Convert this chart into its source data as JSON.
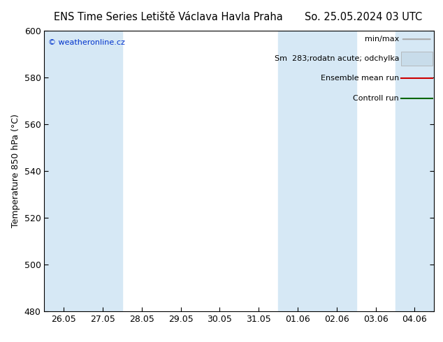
{
  "title_left": "ENS Time Series Letiště Václava Havla Praha",
  "title_right": "So. 25.05.2024 03 UTC",
  "ylabel": "Temperature 850 hPa (°C)",
  "ylim": [
    480,
    600
  ],
  "yticks": [
    480,
    500,
    520,
    540,
    560,
    580,
    600
  ],
  "x_labels": [
    "26.05",
    "27.05",
    "28.05",
    "29.05",
    "30.05",
    "31.05",
    "01.06",
    "02.06",
    "03.06",
    "04.06"
  ],
  "x_values": [
    0,
    1,
    2,
    3,
    4,
    5,
    6,
    7,
    8,
    9
  ],
  "xlim": [
    -0.5,
    9.5
  ],
  "shade_ranges": [
    [
      -0.5,
      1.5
    ],
    [
      5.5,
      7.5
    ],
    [
      8.5,
      9.5
    ]
  ],
  "shade_color": "#d6e8f5",
  "background_color": "#ffffff",
  "watermark": "© weatheronline.cz",
  "watermark_color": "#0033cc",
  "legend_entries": [
    "min/max",
    "Sm  283;rodatn acute; odchylka",
    "Ensemble mean run",
    "Controll run"
  ],
  "legend_line_color": "#aaaaaa",
  "legend_patch_color": "#c8dcea",
  "legend_ens_color": "#cc0000",
  "legend_ctrl_color": "#006600",
  "title_fontsize": 10.5,
  "ylabel_fontsize": 9,
  "tick_fontsize": 9,
  "legend_fontsize": 8
}
